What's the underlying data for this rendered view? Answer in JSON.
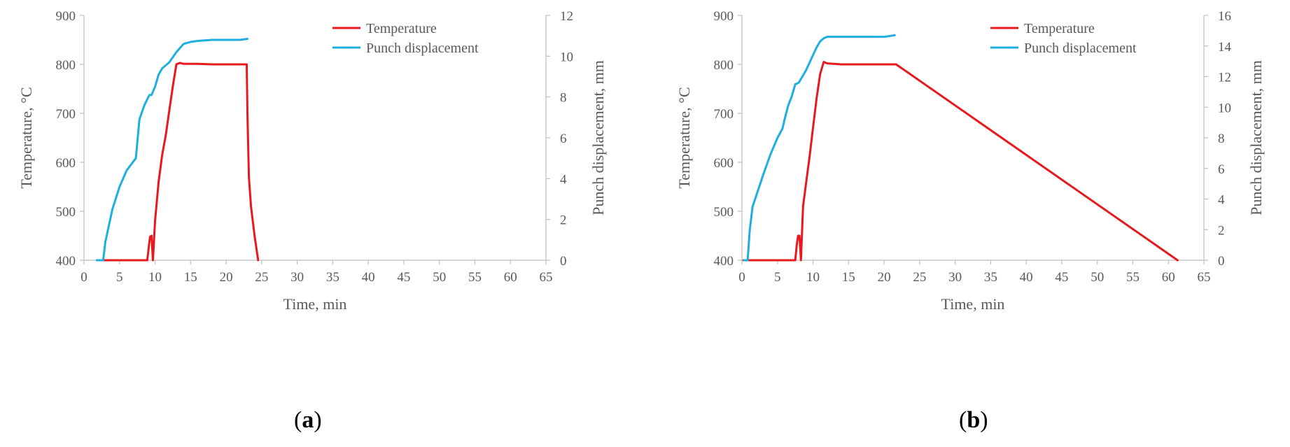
{
  "chart_data": [
    {
      "type": "line",
      "panel_label_open": "(",
      "panel_label": "a",
      "panel_label_close": ")",
      "xlabel": "Time, min",
      "ylabel": "Temperature, °C",
      "y2label": "Punch displacement, mm",
      "xlim": [
        0,
        65
      ],
      "ylim": [
        400,
        900
      ],
      "y2lim": [
        0,
        12
      ],
      "xticks": [
        0,
        5,
        10,
        15,
        20,
        25,
        30,
        35,
        40,
        45,
        50,
        55,
        60,
        65
      ],
      "yticks": [
        400,
        500,
        600,
        700,
        800,
        900
      ],
      "y2ticks": [
        0,
        2,
        4,
        6,
        8,
        10,
        12
      ],
      "grid": false,
      "legend_position": "top-right",
      "series": [
        {
          "name": "Temperature",
          "axis": "left",
          "color": "#e8191c",
          "x": [
            2.8,
            8.9,
            9.1,
            9.3,
            9.5,
            9.7,
            10.0,
            10.5,
            11.0,
            11.5,
            12.0,
            12.5,
            13.0,
            13.5,
            14.0,
            16.0,
            18.0,
            20.0,
            22.0,
            22.9,
            23.0,
            23.2,
            23.5,
            24.0,
            24.5
          ],
          "y": [
            400,
            400,
            425,
            448,
            450,
            400,
            480,
            560,
            615,
            655,
            705,
            755,
            800,
            803,
            801,
            801,
            800,
            800,
            800,
            800,
            700,
            570,
            510,
            450,
            400
          ]
        },
        {
          "name": "Punch displacement",
          "axis": "right",
          "color": "#1eaee0",
          "x": [
            1.8,
            2.7,
            3.0,
            4.0,
            5.0,
            6.0,
            7.3,
            7.8,
            8.5,
            9.2,
            9.5,
            10.0,
            10.5,
            11.0,
            12.0,
            13.0,
            14.0,
            15.0,
            16.0,
            18.0,
            20.0,
            22.0,
            23.0
          ],
          "y": [
            0,
            0,
            0.9,
            2.5,
            3.6,
            4.4,
            5.0,
            6.9,
            7.6,
            8.1,
            8.1,
            8.5,
            9.1,
            9.4,
            9.7,
            10.2,
            10.6,
            10.7,
            10.75,
            10.8,
            10.8,
            10.8,
            10.85
          ]
        }
      ]
    },
    {
      "type": "line",
      "panel_label_open": "(",
      "panel_label": "b",
      "panel_label_close": ")",
      "xlabel": "Time, min",
      "ylabel": "Temperature, °C",
      "y2label": "Punch displacement, mm",
      "xlim": [
        0,
        65
      ],
      "ylim": [
        400,
        900
      ],
      "y2lim": [
        0,
        16
      ],
      "xticks": [
        0,
        5,
        10,
        15,
        20,
        25,
        30,
        35,
        40,
        45,
        50,
        55,
        60,
        65
      ],
      "yticks": [
        400,
        500,
        600,
        700,
        800,
        900
      ],
      "y2ticks": [
        0,
        2,
        4,
        6,
        8,
        10,
        12,
        14,
        16
      ],
      "grid": false,
      "legend_position": "top-right",
      "series": [
        {
          "name": "Temperature",
          "axis": "left",
          "color": "#e8191c",
          "x": [
            0.2,
            7.5,
            7.7,
            7.9,
            8.1,
            8.3,
            8.6,
            9.0,
            9.5,
            10.0,
            10.5,
            11.0,
            11.5,
            12.0,
            14.0,
            16.0,
            18.0,
            20.0,
            21.7,
            61.3
          ],
          "y": [
            400,
            400,
            430,
            450,
            450,
            400,
            510,
            555,
            610,
            670,
            730,
            780,
            805,
            802,
            800,
            800,
            800,
            800,
            800,
            400
          ]
        },
        {
          "name": "Punch displacement",
          "axis": "right",
          "color": "#1eaee0",
          "x": [
            0.3,
            0.8,
            1.1,
            1.5,
            2.0,
            3.0,
            4.0,
            5.0,
            5.7,
            6.0,
            6.5,
            7.0,
            7.5,
            8.0,
            8.5,
            9.0,
            9.5,
            10.0,
            10.5,
            11.0,
            11.5,
            12.0,
            13.0,
            14.0,
            16.0,
            18.0,
            20.0,
            21.5
          ],
          "y": [
            0,
            0,
            2.0,
            3.5,
            4.2,
            5.6,
            6.9,
            8.0,
            8.6,
            9.2,
            10.1,
            10.7,
            11.5,
            11.6,
            12.0,
            12.4,
            12.9,
            13.4,
            13.9,
            14.3,
            14.5,
            14.6,
            14.6,
            14.6,
            14.6,
            14.6,
            14.6,
            14.7
          ]
        }
      ]
    }
  ]
}
